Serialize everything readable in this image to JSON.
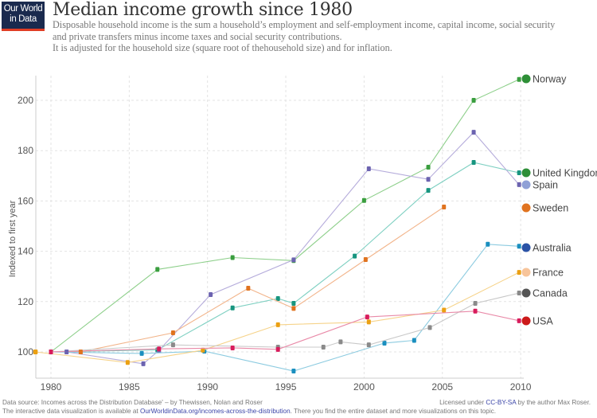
{
  "header": {
    "logo_line1": "Our World",
    "logo_line2": "in Data",
    "title": "Median income growth since 1980",
    "subtitle_lines": [
      "Disposable household income is the sum a household’s employment and self-employment income, capital income, social security",
      "and private transfers minus income taxes and social security contributions.",
      "It is adjusted for the household size (square root of thehousehold size) and for inflation."
    ]
  },
  "footer": {
    "source_text": "Data source: Incomes across the Distribution Database' – by Thewissen, Nolan and Roser",
    "interactive_prefix": "The interactive data visualization is available at ",
    "interactive_link": "OurWorldinData.org/incomes-across-the-distribution",
    "interactive_suffix": ". There you find the entire dataset and more visualizations on this topic.",
    "license_prefix": "Licensed under ",
    "license_link": "CC-BY-SA",
    "license_suffix": " by the author Max Roser."
  },
  "chart_data": {
    "type": "line",
    "title": "Median income growth since 1980",
    "xlabel": "",
    "ylabel": "Indexed to first year",
    "xlim": [
      1979,
      2010.5
    ],
    "ylim": [
      89.5,
      210
    ],
    "xticks": [
      1980,
      1985,
      1990,
      1995,
      2000,
      2005,
      2010
    ],
    "yticks": [
      100,
      120,
      140,
      160,
      180,
      200
    ],
    "grid": true,
    "legend_position": "right (end-of-line labels)",
    "series": [
      {
        "name": "Norway",
        "line_color": "#8dcf8a",
        "marker_color": "#3a9e3f",
        "legend_color": "#2e8f37",
        "points": [
          [
            1980,
            100
          ],
          [
            1986.8,
            132.8
          ],
          [
            1991.6,
            137.5
          ],
          [
            1995.5,
            136.3
          ],
          [
            2000.0,
            160.2
          ],
          [
            2004.1,
            173.4
          ],
          [
            2007.0,
            200.0
          ],
          [
            2009.9,
            208.3
          ]
        ]
      },
      {
        "name": "United Kingdom",
        "line_color": "#7fd0c2",
        "marker_color": "#17957f",
        "legend_color": "#2e8f37",
        "points": [
          [
            1980,
            100
          ],
          [
            1986.8,
            100.8
          ],
          [
            1991.6,
            117.5
          ],
          [
            1994.5,
            121.2
          ],
          [
            1995.5,
            119.3
          ],
          [
            1999.4,
            138.1
          ],
          [
            2004.1,
            164.2
          ],
          [
            2007.0,
            175.3
          ],
          [
            2009.9,
            171.2
          ]
        ]
      },
      {
        "name": "Spain",
        "line_color": "#b5acdb",
        "marker_color": "#6c63b0",
        "legend_color": "#8fa0d6",
        "points": [
          [
            1980,
            100
          ],
          [
            1981.0,
            100
          ],
          [
            1985.9,
            95.3
          ],
          [
            1986.9,
            100.6
          ],
          [
            1990.2,
            122.8
          ],
          [
            1995.5,
            136.6
          ],
          [
            2000.3,
            172.8
          ],
          [
            2004.1,
            168.6
          ],
          [
            2007.0,
            187.3
          ],
          [
            2009.9,
            166.5
          ]
        ]
      },
      {
        "name": "Sweden",
        "line_color": "#f2b48a",
        "marker_color": "#e0731f",
        "legend_color": "#e0731f",
        "points": [
          [
            1980,
            100
          ],
          [
            1981.9,
            100
          ],
          [
            1987.8,
            107.6
          ],
          [
            1992.6,
            125.3
          ],
          [
            1995.5,
            117.3
          ],
          [
            2000.1,
            136.7
          ],
          [
            2005.1,
            157.6
          ]
        ]
      },
      {
        "name": "Australia",
        "line_color": "#8ccbe0",
        "marker_color": "#1a8fbf",
        "legend_color": "#2a52a6",
        "points": [
          [
            1980,
            100
          ],
          [
            1985.8,
            99.4
          ],
          [
            1989.8,
            100.3
          ],
          [
            1995.5,
            92.4
          ],
          [
            2001.3,
            103.5
          ],
          [
            2003.2,
            104.6
          ],
          [
            2007.9,
            142.8
          ],
          [
            2009.9,
            142.0
          ]
        ]
      },
      {
        "name": "France",
        "line_color": "#f6d38a",
        "marker_color": "#eba012",
        "legend_color": "#f7c49a",
        "points": [
          [
            1979.0,
            100
          ],
          [
            1984.9,
            95.8
          ],
          [
            1989.7,
            100.7
          ],
          [
            1994.5,
            110.8
          ],
          [
            2000.3,
            111.9
          ],
          [
            2005.1,
            116.6
          ],
          [
            2009.9,
            131.6
          ]
        ]
      },
      {
        "name": "Canada",
        "line_color": "#c9c9c9",
        "marker_color": "#8a8a8a",
        "legend_color": "#555555",
        "points": [
          [
            1980,
            100
          ],
          [
            1987.8,
            102.8
          ],
          [
            1994.5,
            101.9
          ],
          [
            1997.4,
            101.9
          ],
          [
            1998.5,
            104.0
          ],
          [
            2000.3,
            102.8
          ],
          [
            2004.2,
            109.7
          ],
          [
            2007.1,
            119.3
          ],
          [
            2009.9,
            123.4
          ]
        ]
      },
      {
        "name": "USA",
        "line_color": "#e98aa8",
        "marker_color": "#d81c5c",
        "legend_color": "#cc1a1a",
        "points": [
          [
            1980,
            100
          ],
          [
            1986.9,
            101.2
          ],
          [
            1991.6,
            101.6
          ],
          [
            1994.5,
            101.0
          ],
          [
            2000.2,
            113.9
          ],
          [
            2007.1,
            116.2
          ],
          [
            2009.9,
            112.4
          ]
        ]
      }
    ],
    "legend_values": {
      "Norway": 208.3,
      "United Kingdom": 171.2,
      "Spain": 166.5,
      "Sweden": 157.6,
      "Australia": 142.0,
      "France": 131.6,
      "Canada": 123.4,
      "USA": 112.4
    }
  }
}
